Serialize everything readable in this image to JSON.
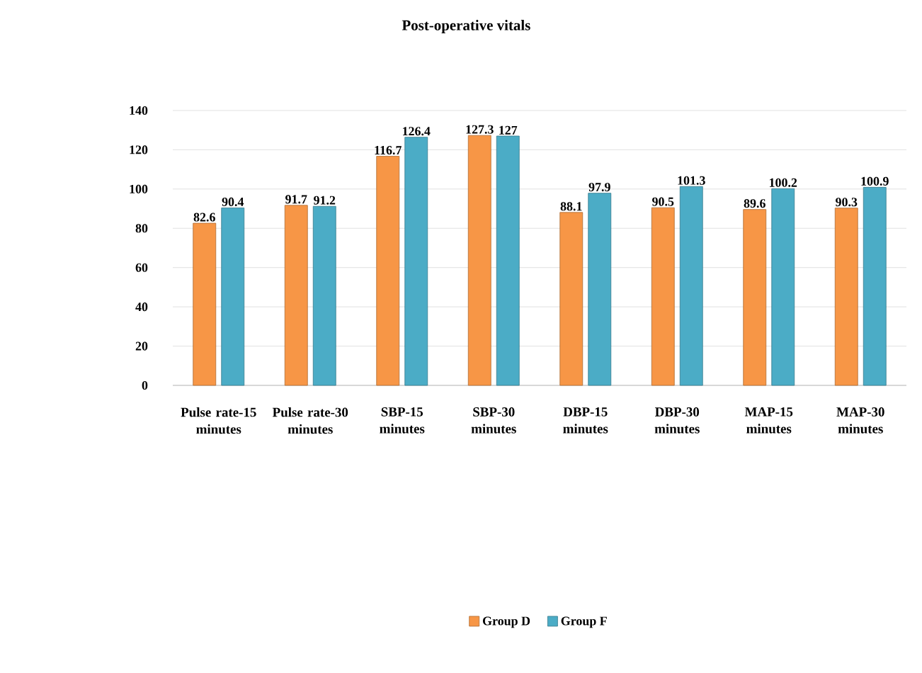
{
  "chart_data": {
    "type": "bar",
    "title": "Post-operative vitals",
    "categories": [
      "Pulse rate-15 minutes",
      "Pulse rate-30 minutes",
      "SBP-15 minutes",
      "SBP-30 minutes",
      "DBP-15 minutes",
      "DBP-30 minutes",
      "MAP-15 minutes",
      "MAP-30 minutes"
    ],
    "series": [
      {
        "name": "Group D",
        "color": "#f79646",
        "values": [
          82.6,
          91.7,
          116.7,
          127.3,
          88.1,
          90.5,
          89.6,
          90.3
        ]
      },
      {
        "name": "Group F",
        "color": "#4bacc6",
        "values": [
          90.4,
          91.2,
          126.4,
          127,
          97.9,
          101.3,
          100.2,
          100.9
        ]
      }
    ],
    "ylim": [
      0,
      140
    ],
    "yticks": [
      0,
      20,
      40,
      60,
      80,
      100,
      120,
      140
    ],
    "grid": "y",
    "data_labels": true,
    "legend": "bottom"
  }
}
